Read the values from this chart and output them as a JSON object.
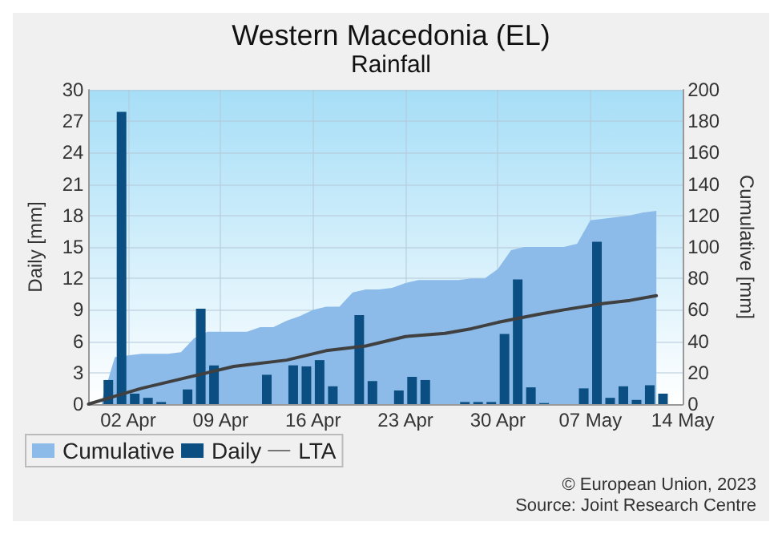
{
  "chart_data": {
    "type": "bar",
    "title": "Western Macedonia (EL)",
    "subtitle": "Rainfall",
    "ylabel": "Daily [mm]",
    "y2label": "Cumulative [mm]",
    "annotations": [
      "© European Union, 2023",
      "Source: Joint Research Centre"
    ],
    "x": [
      "--03-31T12:00",
      "--04-01T12:00",
      "--04-02T12:00",
      "--04-03T12:00",
      "--04-04T12:00",
      "--04-05T12:00",
      "--04-06T12:00",
      "--04-07T12:00",
      "--04-08T12:00",
      "--04-09T12:00",
      "--04-10T12:00",
      "--04-11T12:00",
      "--04-12T12:00",
      "--04-13T12:00",
      "--04-14T12:00",
      "--04-15T12:00",
      "--04-16T12:00",
      "--04-17T12:00",
      "--04-18T12:00",
      "--04-19T12:00",
      "--04-20T12:00",
      "--04-21T12:00",
      "--04-22T12:00",
      "--04-23T12:00",
      "--04-24T12:00",
      "--04-25T12:00",
      "--04-26T12:00",
      "--04-27T12:00",
      "--04-28T12:00",
      "--04-29T12:00",
      "--04-30T12:00",
      "--05-01T12:00",
      "--05-02T12:00",
      "--05-03T12:00",
      "--05-04T12:00",
      "--05-05T12:00",
      "--05-06T12:00",
      "--05-07T12:00",
      "--05-08T12:00",
      "--05-09T12:00",
      "--05-10T12:00",
      "--05-11T12:00",
      "--05-12T12:00"
    ],
    "series": [
      {
        "name": "Cumulative",
        "type": "area",
        "axis": "y2",
        "color": "#8cbbe9",
        "x": [
          "--03-31",
          "--04-01",
          "--04-02",
          "--04-03",
          "--04-04",
          "--04-05",
          "--04-06",
          "--04-07",
          "--04-08",
          "--04-09",
          "--04-10",
          "--04-11",
          "--04-12",
          "--04-13",
          "--04-14",
          "--04-15",
          "--04-16",
          "--04-17",
          "--04-18",
          "--04-19",
          "--04-20",
          "--04-21",
          "--04-22",
          "--04-23",
          "--04-24",
          "--04-25",
          "--04-26",
          "--04-27",
          "--04-28",
          "--04-29",
          "--04-30",
          "--05-01",
          "--05-02",
          "--05-03",
          "--05-04",
          "--05-05",
          "--05-06",
          "--05-07",
          "--05-08",
          "--05-09",
          "--05-10",
          "--05-11",
          "--05-12"
        ],
        "values": [
          2,
          30,
          31,
          32,
          32,
          32,
          33,
          42,
          46,
          46,
          46,
          46,
          49,
          49,
          53,
          56,
          60,
          62,
          62,
          71,
          73,
          73,
          74,
          77,
          79,
          79,
          79,
          79,
          80,
          80,
          86,
          98,
          100,
          100,
          100,
          100,
          102,
          117,
          118,
          119,
          120,
          122,
          123
        ]
      },
      {
        "name": "Daily",
        "axis": "y",
        "color": "#0b4f82",
        "values": [
          2.3,
          27.9,
          1.0,
          0.6,
          0.2,
          0,
          1.4,
          9.1,
          3.7,
          0,
          0,
          0,
          2.8,
          0,
          3.7,
          3.6,
          4.2,
          1.7,
          0,
          8.5,
          2.2,
          0,
          1.3,
          2.6,
          2.3,
          0,
          0,
          0.2,
          0.2,
          0.2,
          6.7,
          11.9,
          1.6,
          0.1,
          0,
          0,
          1.5,
          15.5,
          0.6,
          1.7,
          0.4,
          1.8,
          1.0
        ]
      },
      {
        "name": "LTA",
        "type": "line",
        "axis": "y2",
        "color": "#404040",
        "x": [
          "--03-30",
          "--04-01",
          "--04-03",
          "--04-06",
          "--04-10",
          "--04-14",
          "--04-17",
          "--04-20",
          "--04-23",
          "--04-26",
          "--04-28",
          "--04-30",
          "--05-03",
          "--05-05",
          "--05-08",
          "--05-10",
          "--05-12"
        ],
        "values": [
          0,
          5,
          10,
          16,
          24,
          28,
          34,
          37,
          43,
          45,
          48,
          52,
          57,
          60,
          64,
          66,
          69
        ]
      }
    ],
    "xlim": [
      "--03-30",
      "--05-14"
    ],
    "xticks": [
      {
        "value": "--04-02",
        "label": "02 Apr"
      },
      {
        "value": "--04-09",
        "label": "09 Apr"
      },
      {
        "value": "--04-16",
        "label": "16 Apr"
      },
      {
        "value": "--04-23",
        "label": "23 Apr"
      },
      {
        "value": "--04-30",
        "label": "30 Apr"
      },
      {
        "value": "--05-07",
        "label": "07 May"
      },
      {
        "value": "--05-14",
        "label": "14 May"
      }
    ],
    "ylim": [
      0,
      30
    ],
    "yticks": [
      0,
      3,
      6,
      9,
      12,
      15,
      18,
      21,
      24,
      27,
      30
    ],
    "y2lim": [
      0,
      200
    ],
    "y2ticks": [
      0,
      20,
      40,
      60,
      80,
      100,
      120,
      140,
      160,
      180,
      200
    ],
    "grid": true,
    "legend": "bottom left"
  }
}
